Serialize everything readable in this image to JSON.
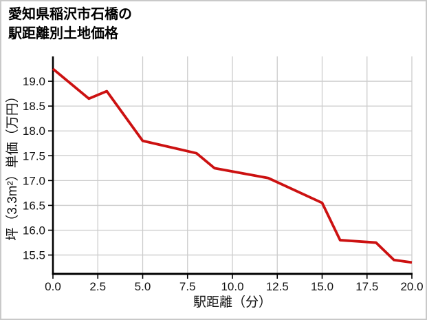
{
  "title": {
    "line1": "愛知県稲沢市石橋の",
    "line2": "駅距離別土地価格"
  },
  "chart_data": {
    "type": "line",
    "title": "愛知県稲沢市石橋の駅距離別土地価格",
    "xlabel": "駅距離（分）",
    "ylabel": "坪（3.3m²）単価（万円）",
    "x": [
      0,
      2,
      3,
      5,
      8,
      9,
      12,
      15,
      16,
      18,
      19,
      20
    ],
    "y": [
      19.25,
      18.65,
      18.8,
      17.8,
      17.55,
      17.25,
      17.05,
      16.55,
      15.8,
      15.75,
      15.4,
      15.35
    ],
    "xlim": [
      0,
      20
    ],
    "ylim": [
      15.12,
      19.5
    ],
    "xticks": [
      0,
      2.5,
      5,
      7.5,
      10,
      12.5,
      15,
      17.5,
      20
    ],
    "xtick_labels": [
      "0.0",
      "2.5",
      "5.0",
      "7.5",
      "10.0",
      "12.5",
      "15.0",
      "17.5",
      "20.0"
    ],
    "yticks": [
      15.5,
      16.0,
      16.5,
      17.0,
      17.5,
      18.0,
      18.5,
      19.0
    ],
    "ytick_labels": [
      "15.5",
      "16.0",
      "16.5",
      "17.0",
      "17.5",
      "18.0",
      "18.5",
      "19.0"
    ],
    "grid": true,
    "legend": false,
    "colors": {
      "line": "#cc1111",
      "grid": "#cccccc",
      "axis": "#000000",
      "text": "#111111"
    }
  }
}
